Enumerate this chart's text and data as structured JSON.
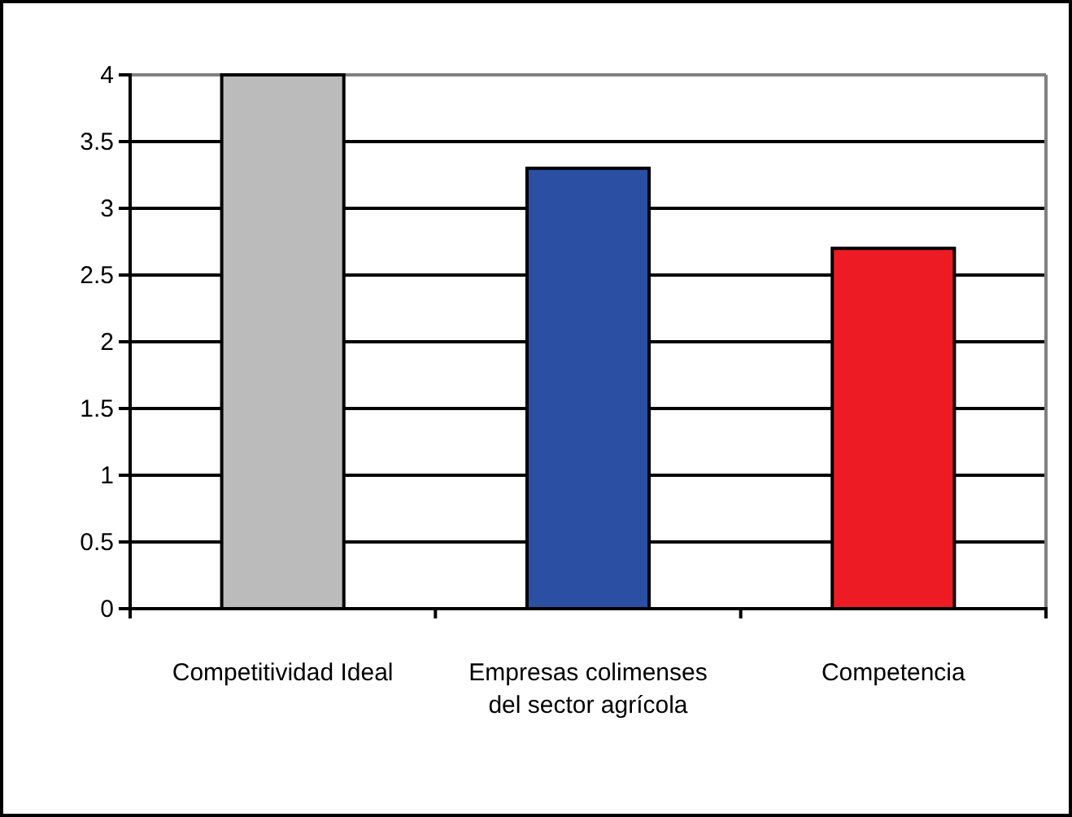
{
  "chart_data": {
    "type": "bar",
    "categories": [
      "Competitividad Ideal",
      "Empresas colimenses del sector agrícola",
      "Competencia"
    ],
    "values": [
      4,
      3.3,
      2.7
    ],
    "colors": [
      "#bbbbbb",
      "#2b4fa3",
      "#ed1c24"
    ],
    "ylim": [
      0,
      4
    ],
    "yticks": [
      0,
      0.5,
      1,
      1.5,
      2,
      2.5,
      3,
      3.5,
      4
    ],
    "grid": "y"
  }
}
